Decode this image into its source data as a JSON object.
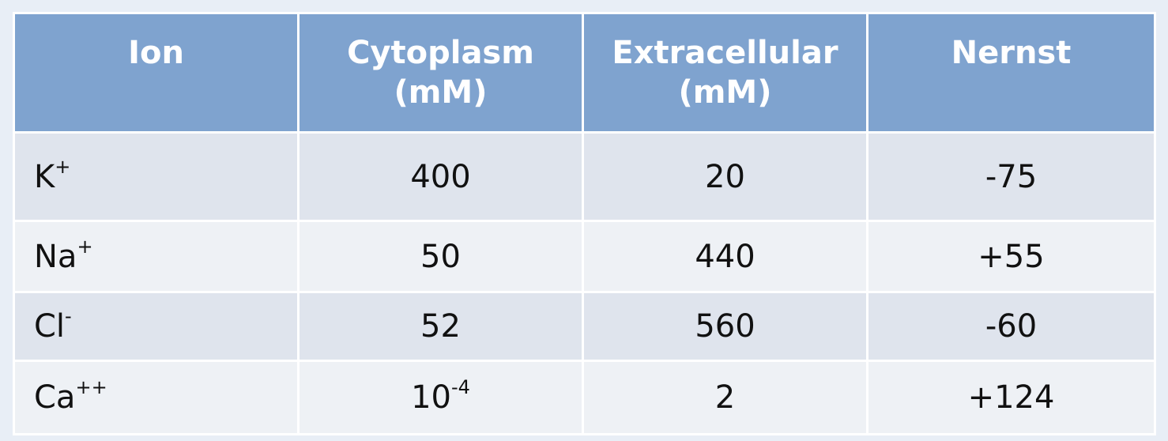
{
  "table": {
    "headers": [
      {
        "line1": "Ion",
        "line2": ""
      },
      {
        "line1": "Cytoplasm",
        "line2": "(mM)"
      },
      {
        "line1": "Extracellular",
        "line2": "(mM)"
      },
      {
        "line1": "Nernst",
        "line2": ""
      }
    ],
    "rows": [
      {
        "ion": "K",
        "ion_sup": "+",
        "cytoplasm": "400",
        "cytoplasm_sup": "",
        "extracellular": "20",
        "nernst": "-75"
      },
      {
        "ion": "Na",
        "ion_sup": "+",
        "cytoplasm": "50",
        "cytoplasm_sup": "",
        "extracellular": "440",
        "nernst": "+55"
      },
      {
        "ion": "Cl",
        "ion_sup": "-",
        "cytoplasm": "52",
        "cytoplasm_sup": "",
        "extracellular": "560",
        "nernst": "-60"
      },
      {
        "ion": "Ca",
        "ion_sup": "++",
        "cytoplasm": "10",
        "cytoplasm_sup": "-4",
        "extracellular": "2",
        "nernst": "+124"
      }
    ]
  },
  "colors": {
    "header_bg": "#7fa3cf",
    "row_dark": "#dfe4ed",
    "row_light": "#eef1f5",
    "page_bg": "#e8eef6"
  }
}
